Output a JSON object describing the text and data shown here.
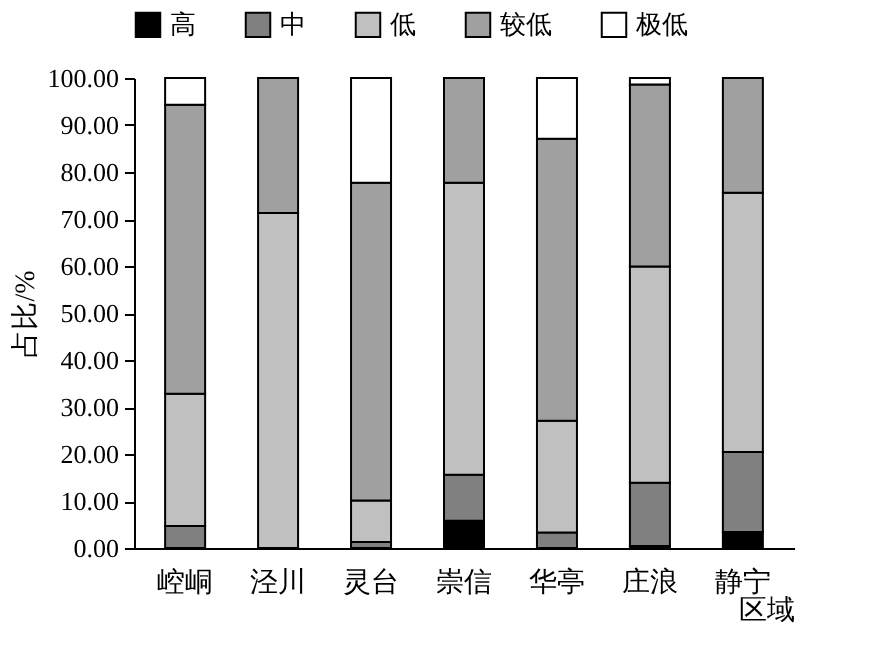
{
  "chart_data": {
    "type": "bar",
    "stacked": true,
    "xlabel": "区域",
    "ylabel": "占比/%",
    "categories": [
      "崆峒",
      "泾川",
      "灵台",
      "崇信",
      "华亭",
      "庄浪",
      "静宁"
    ],
    "series": [
      {
        "name": "高",
        "color": "#000000",
        "values": [
          0,
          0,
          0,
          5.8,
          0,
          0.4,
          3.4
        ]
      },
      {
        "name": "中",
        "color": "#808080",
        "values": [
          4.7,
          0,
          1.3,
          9.8,
          3.3,
          13.5,
          17.0
        ]
      },
      {
        "name": "低",
        "color": "#c0c0c0",
        "values": [
          28.1,
          71.3,
          8.8,
          62.1,
          23.8,
          46.0,
          55.2
        ]
      },
      {
        "name": "较低",
        "color": "#a0a0a0",
        "values": [
          61.5,
          28.7,
          67.6,
          22.3,
          60.0,
          38.7,
          24.4
        ]
      },
      {
        "name": "极低",
        "color": "#ffffff",
        "values": [
          5.7,
          0,
          22.3,
          0,
          12.9,
          1.4,
          0
        ]
      }
    ],
    "ylim": [
      0,
      100
    ],
    "yticks": [
      {
        "value": 0,
        "label": "0.00"
      },
      {
        "value": 10,
        "label": "10.00"
      },
      {
        "value": 20,
        "label": "20.00"
      },
      {
        "value": 30,
        "label": "30.00"
      },
      {
        "value": 40,
        "label": "40.00"
      },
      {
        "value": 50,
        "label": "50.00"
      },
      {
        "value": 60,
        "label": "60.00"
      },
      {
        "value": 70,
        "label": "70.00"
      },
      {
        "value": 80,
        "label": "80.00"
      },
      {
        "value": 90,
        "label": "90.00"
      },
      {
        "value": 100,
        "label": "100.00"
      }
    ],
    "legend": "top",
    "grid": false
  }
}
